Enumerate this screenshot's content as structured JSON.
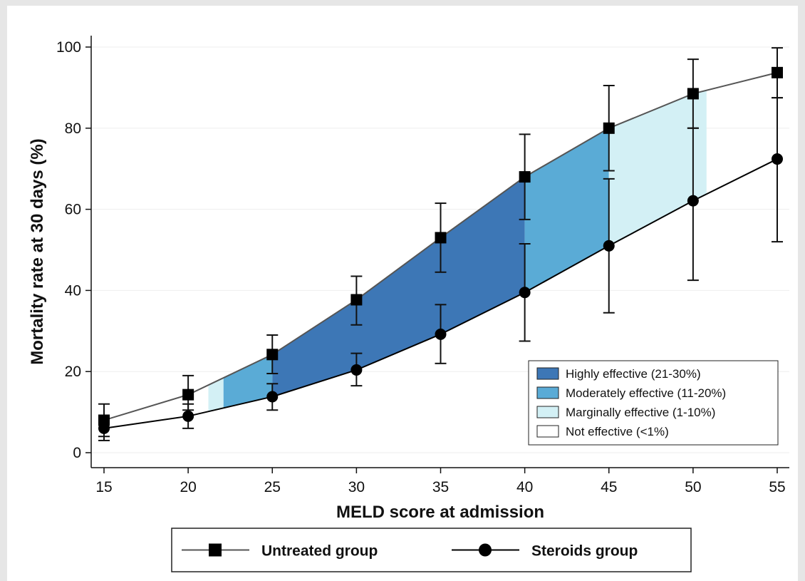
{
  "chart_data": {
    "type": "line",
    "xlabel": "MELD score at admission",
    "ylabel": "Mortality rate at 30 days (%)",
    "xlim": [
      15,
      55
    ],
    "ylim": [
      0,
      100
    ],
    "x_ticks": [
      15,
      20,
      25,
      30,
      35,
      40,
      45,
      50,
      55
    ],
    "y_ticks": [
      0,
      20,
      40,
      60,
      80,
      100
    ],
    "grid": true,
    "x": [
      15,
      20,
      25,
      30,
      35,
      40,
      45,
      50,
      55
    ],
    "series": [
      {
        "name": "Untreated group",
        "marker": "square",
        "line_color": "#555555",
        "values": [
          8,
          14.3,
          24.2,
          37.7,
          53,
          68,
          80,
          88.5,
          93.7
        ],
        "ci_low": [
          4,
          10.5,
          19.5,
          31.5,
          44.5,
          57.5,
          69.5,
          80,
          87.5
        ],
        "ci_high": [
          12,
          19,
          29,
          43.5,
          61.5,
          78.5,
          90.5,
          97,
          99.8
        ]
      },
      {
        "name": "Steroids group",
        "marker": "circle",
        "line_color": "#000000",
        "values": [
          6,
          9,
          13.8,
          20.4,
          29.2,
          39.5,
          51,
          62.1,
          72.4
        ],
        "ci_low": [
          3,
          6,
          10.5,
          16.5,
          22,
          27.5,
          34.5,
          42.5,
          52
        ],
        "ci_high": [
          9,
          12,
          17,
          24.5,
          36.5,
          51.5,
          67.5,
          80,
          87.5
        ]
      }
    ],
    "effect_bands": [
      {
        "label": "Marginally effective (1-10%)",
        "color": "#d3f0f5",
        "x_from": 21.2,
        "x_to": 22.1
      },
      {
        "label": "Moderately effective (11-20%)",
        "color": "#5aabd6",
        "x_from": 22.1,
        "x_to": 25.0
      },
      {
        "label": "Highly effective (21-30%)",
        "color": "#3d77b6",
        "x_from": 25.0,
        "x_to": 40.0
      },
      {
        "label": "Moderately effective (11-20%)",
        "color": "#5aabd6",
        "x_from": 40.0,
        "x_to": 45.0
      },
      {
        "label": "Marginally effective (1-10%)",
        "color": "#d3f0f5",
        "x_from": 45.0,
        "x_to": 50.8
      }
    ],
    "inner_legend": {
      "placement": "bottom-right",
      "entries": [
        {
          "label": "Highly effective (21-30%)",
          "color": "#3d77b6"
        },
        {
          "label": "Moderately effective (11-20%)",
          "color": "#5aabd6"
        },
        {
          "label": "Marginally effective (1-10%)",
          "color": "#d3f0f5"
        },
        {
          "label": "Not effective (<1%)",
          "color": "#ffffff"
        }
      ]
    },
    "outer_legend": {
      "placement": "bottom",
      "entries": [
        {
          "label": "Untreated group",
          "marker": "square"
        },
        {
          "label": "Steroids group",
          "marker": "circle"
        }
      ]
    }
  }
}
